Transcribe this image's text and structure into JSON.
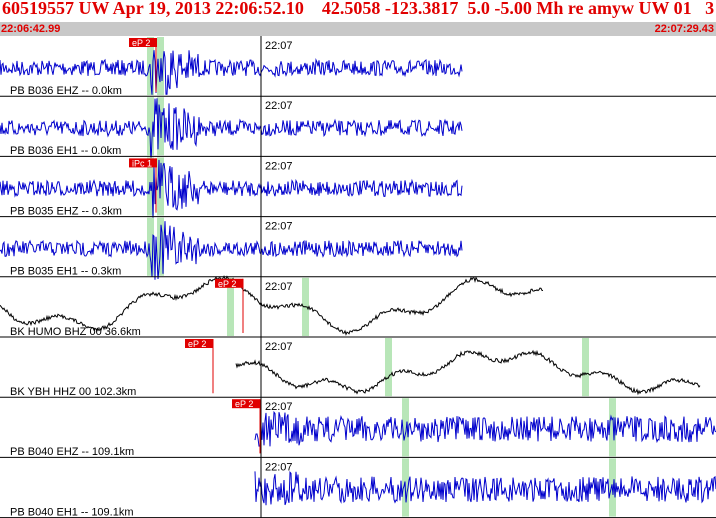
{
  "header": {
    "title": "60519557 UW Apr 19, 2013 22:06:52.10    42.5058 -123.3817  5.0 -5.00 Mh re amyw UW 01   3",
    "start_time": "22:06:42.99",
    "end_time": "22:07:29.43"
  },
  "colors": {
    "title": "#e00000",
    "timebar": "#c8c8c8",
    "trace_blue": "#0000cc",
    "trace_black": "#000000",
    "pick": "#e00000",
    "highlight": "#b8e6b8",
    "grid": "#000000"
  },
  "traces": [
    {
      "label": "PB B036 EHZ -- 0.0km",
      "tick": "22:07",
      "pick": "eP 2",
      "color": "blue"
    },
    {
      "label": "PB B036 EH1 -- 0.0km",
      "tick": "22:07",
      "pick": "",
      "color": "blue"
    },
    {
      "label": "PB B035 EHZ -- 0.3km",
      "tick": "22:07",
      "pick": "iPc 1",
      "color": "blue"
    },
    {
      "label": "PB B035 EH1 -- 0.3km",
      "tick": "22:07",
      "pick": "",
      "color": "blue"
    },
    {
      "label": "BK HUMO BHZ 00 36.6km",
      "tick": "22:07",
      "pick": "eP 2",
      "color": "black"
    },
    {
      "label": "BK YBH HHZ 00 102.3km",
      "tick": "22:07",
      "pick": "eP 2",
      "color": "black"
    },
    {
      "label": "PB B040 EHZ -- 109.1km",
      "tick": "22:07",
      "pick": "eP 2",
      "color": "blue"
    },
    {
      "label": "PB B040 EH1 -- 109.1km",
      "tick": "22:07",
      "pick": "",
      "color": "blue"
    }
  ]
}
